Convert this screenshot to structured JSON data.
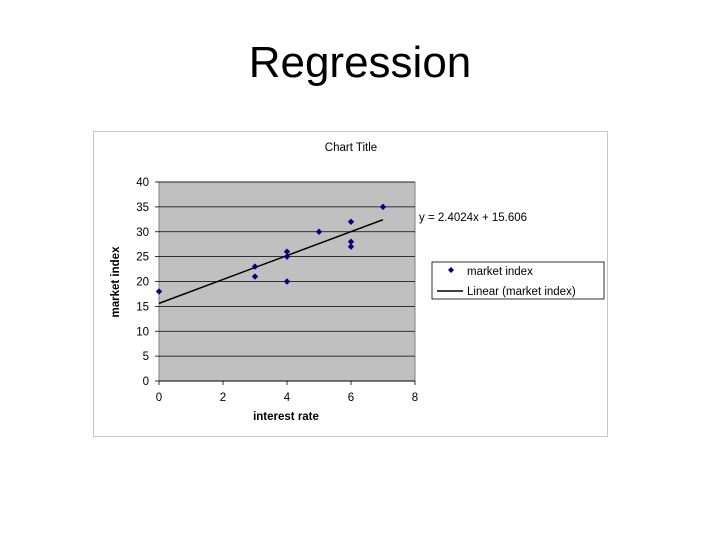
{
  "slide": {
    "title": "Regression"
  },
  "chart_data": {
    "type": "scatter",
    "title": "Chart Title",
    "xlabel": "interest rate",
    "ylabel": "market index",
    "xlim": [
      0,
      8
    ],
    "ylim": [
      0,
      40
    ],
    "x_ticks": [
      0,
      2,
      4,
      6,
      8
    ],
    "y_ticks": [
      0,
      5,
      10,
      15,
      20,
      25,
      30,
      35,
      40
    ],
    "grid": "horizontal",
    "plot_background": "#c0c0c0",
    "series": [
      {
        "name": "market index",
        "color": "#000080",
        "marker": "diamond",
        "points": [
          {
            "x": 0,
            "y": 18
          },
          {
            "x": 3,
            "y": 23
          },
          {
            "x": 3,
            "y": 21
          },
          {
            "x": 4,
            "y": 26
          },
          {
            "x": 4,
            "y": 25
          },
          {
            "x": 4,
            "y": 20
          },
          {
            "x": 5,
            "y": 30
          },
          {
            "x": 6,
            "y": 32
          },
          {
            "x": 6,
            "y": 28
          },
          {
            "x": 6,
            "y": 27
          },
          {
            "x": 7,
            "y": 35
          }
        ]
      }
    ],
    "trendline": {
      "name": "Linear (market index)",
      "slope": 2.4024,
      "intercept": 15.606,
      "x_range": [
        0,
        7
      ],
      "color": "#000000",
      "equation_label": "y = 2.4024x + 15.606"
    },
    "legend": {
      "position": "right",
      "entries": [
        "market index",
        "Linear (market index)"
      ]
    }
  }
}
